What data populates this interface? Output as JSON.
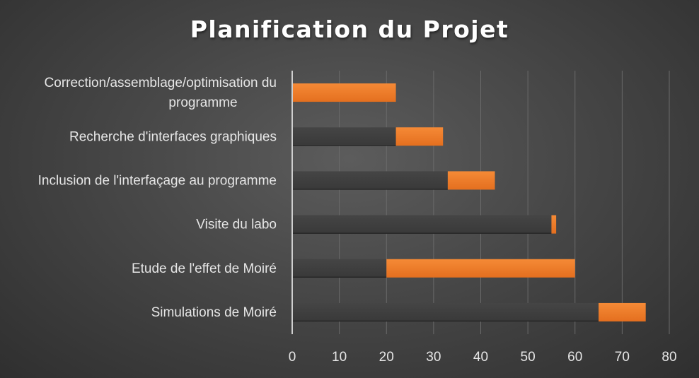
{
  "chart_data": {
    "type": "bar",
    "orientation": "horizontal",
    "stacked": true,
    "title": "Planification du Projet",
    "categories": [
      "Correction/assemblage/optimisation du programme",
      "Recherche d'interfaces graphiques",
      "Inclusion de l'interfaçage au programme",
      "Visite du labo",
      "Etude de l'effet de Moiré",
      "Simulations de Moiré"
    ],
    "category_lines": [
      [
        "Correction/assemblage/optimisation du",
        "programme"
      ],
      [
        "Recherche d'interfaces graphiques"
      ],
      [
        "Inclusion de l'interfaçage au programme"
      ],
      [
        "Visite du labo"
      ],
      [
        "Etude de l'effet de Moiré"
      ],
      [
        "Simulations de Moiré"
      ]
    ],
    "series": [
      {
        "role": "start",
        "values": [
          0,
          22,
          33,
          55,
          20,
          65
        ],
        "color": "#3f3f3f"
      },
      {
        "role": "duration",
        "values": [
          22,
          10,
          10,
          1,
          40,
          10
        ],
        "color": "#ef7d2d"
      }
    ],
    "xlim": [
      0,
      80
    ],
    "xticks": [
      "0",
      "10",
      "20",
      "30",
      "40",
      "50",
      "60",
      "70",
      "80"
    ],
    "grid": true,
    "legend": "none"
  }
}
